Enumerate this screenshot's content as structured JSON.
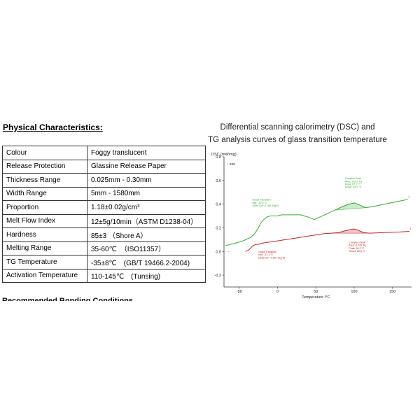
{
  "heading": "Physical Characteristics:",
  "rows": [
    {
      "label": "Colour",
      "value": "Foggy translucent"
    },
    {
      "label": "Release Protection",
      "value": "Glassine Release Paper"
    },
    {
      "label": "Thickness Range",
      "value": "0.025mm - 0.30mm"
    },
    {
      "label": "Width Range",
      "value": "5mm - 1580mm"
    },
    {
      "label": "Proportion",
      "value": "1.18±0.02g/cm³"
    },
    {
      "label": "Melt Flow Index",
      "value": "12±5g/10min（ASTM D1238-04）"
    },
    {
      "label": "Hardness",
      "value": "85±3 （Shore A）"
    },
    {
      "label": "Melting Range",
      "value": "35-60℃　（ISO11357）"
    },
    {
      "label": "TG Temperature",
      "value": "-35±8℃　(GB/T 19466.2-2004)"
    },
    {
      "label": "Activation Temperature",
      "value": "110-145℃　(Tunsing)"
    }
  ],
  "cutoff_text": "Recommended Bonding Conditions",
  "chart_title_line1": "Differential scanning calorimetry (DSC) and",
  "chart_title_line2": "TG analysis curves of glass transition temperature",
  "chart_data": {
    "type": "line",
    "title": "",
    "ylabel": "DSC (mW/mg)",
    "exo_label": "↑ exo",
    "xlabel": "Temperature /°C",
    "xlim": [
      -70,
      175
    ],
    "ylim": [
      -0.3,
      0.8
    ],
    "x_ticks": [
      -50,
      0,
      50,
      100,
      150
    ],
    "y_ticks": [
      -0.2,
      0.0,
      0.2,
      0.4,
      0.6,
      0.8
    ],
    "grid": false,
    "series": [
      {
        "color": "#33aa33",
        "points": [
          [
            -68,
            0.05
          ],
          [
            -55,
            0.07
          ],
          [
            -45,
            0.09
          ],
          [
            -35,
            0.12
          ],
          [
            -30,
            0.15
          ],
          [
            -25,
            0.2
          ],
          [
            -22,
            0.24
          ],
          [
            -18,
            0.27
          ],
          [
            -14,
            0.29
          ],
          [
            -10,
            0.3
          ],
          [
            -5,
            0.3
          ],
          [
            0,
            0.3
          ],
          [
            5,
            0.31
          ],
          [
            10,
            0.31
          ],
          [
            20,
            0.31
          ],
          [
            30,
            0.31
          ],
          [
            40,
            0.29
          ],
          [
            48,
            0.27
          ],
          [
            55,
            0.29
          ],
          [
            65,
            0.32
          ],
          [
            75,
            0.35
          ],
          [
            85,
            0.38
          ],
          [
            93,
            0.4
          ],
          [
            100,
            0.41
          ],
          [
            108,
            0.39
          ],
          [
            115,
            0.37
          ],
          [
            125,
            0.38
          ],
          [
            140,
            0.4
          ],
          [
            155,
            0.42
          ],
          [
            170,
            0.44
          ]
        ],
        "end_label": "ii"
      },
      {
        "color": "#cc2222",
        "points": [
          [
            -42,
            0.0
          ],
          [
            -38,
            0.01
          ],
          [
            -35,
            0.03
          ],
          [
            -32,
            0.05
          ],
          [
            -28,
            0.06
          ],
          [
            -25,
            0.06
          ],
          [
            -20,
            0.07
          ],
          [
            -10,
            0.08
          ],
          [
            0,
            0.09
          ],
          [
            10,
            0.1
          ],
          [
            20,
            0.11
          ],
          [
            30,
            0.12
          ],
          [
            40,
            0.13
          ],
          [
            50,
            0.14
          ],
          [
            60,
            0.15
          ],
          [
            70,
            0.155
          ],
          [
            80,
            0.16
          ],
          [
            88,
            0.175
          ],
          [
            95,
            0.185
          ],
          [
            100,
            0.19
          ],
          [
            105,
            0.18
          ],
          [
            112,
            0.16
          ],
          [
            120,
            0.155
          ],
          [
            140,
            0.16
          ],
          [
            160,
            0.165
          ],
          [
            172,
            0.17
          ]
        ],
        "end_label": "i"
      }
    ],
    "annotations": [
      {
        "color": "#33aa33",
        "x": -33,
        "y": 0.43,
        "lines": [
          "Onset Transition",
          "Mid:      -30.9 °C",
          "Delta Cp*:  0.168 J/(g·K)"
        ]
      },
      {
        "color": "#33aa33",
        "x": 88,
        "y": 0.61,
        "lines": [
          "Complex Peak",
          "Area:     3.631 J/g",
          "Peak:     97.2 °C",
          "Onset:    62.0 °C"
        ]
      },
      {
        "color": "#cc2222",
        "x": -25,
        "y": -0.01,
        "lines": [
          "Glass Transition",
          "Mid:      -31.1 °C",
          "Delta Cp*:  0.257 J/(g·K)"
        ]
      },
      {
        "color": "#cc2222",
        "x": 93,
        "y": 0.07,
        "lines": [
          "Complex Peak",
          "Area:     4.735 J/g",
          "Peak:     96.2 °C",
          "Onset:    50.6 °C"
        ]
      }
    ]
  }
}
